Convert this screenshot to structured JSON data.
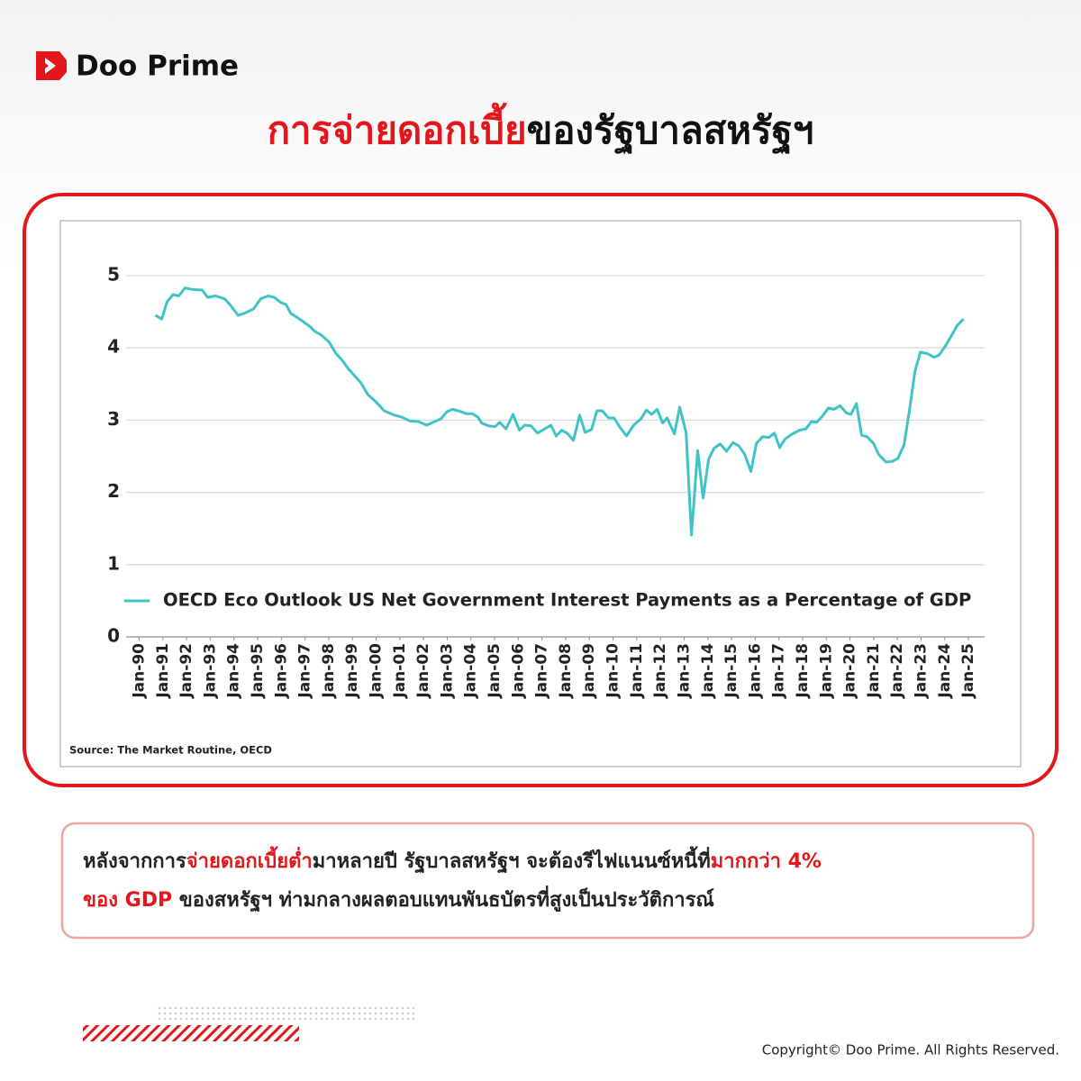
{
  "header": {
    "logo": "Doo Prime",
    "title": [
      {
        "text": "การจ่ายดอกเบี้ย",
        "color": "#e3161b"
      },
      {
        "text": "ของรัฐบาลสหรัฐฯ",
        "color": "#111111"
      }
    ]
  },
  "chart_data": {
    "type": "line",
    "series": [
      {
        "name": "OECD Eco Outlook US Net Government Interest Payments as a Percentage of GDP",
        "color": "#3fc3c7",
        "x": [
          1990.68,
          1990.95,
          1991.18,
          1991.44,
          1991.67,
          1991.94,
          1992.21,
          1992.66,
          1992.89,
          1993.23,
          1993.61,
          1993.88,
          1994.18,
          1994.45,
          1994.83,
          1995.13,
          1995.44,
          1995.7,
          1995.97,
          1996.2,
          1996.39,
          1996.77,
          1997.19,
          1997.41,
          1997.68,
          1998.02,
          1998.29,
          1998.56,
          1998.86,
          1999.13,
          1999.35,
          1999.66,
          2000.0,
          2000.34,
          2000.76,
          2001.1,
          2001.41,
          2001.79,
          2002.13,
          2002.47,
          2002.74,
          2003.0,
          2003.23,
          2003.57,
          2003.8,
          2004.07,
          2004.3,
          2004.45,
          2004.75,
          2005.02,
          2005.21,
          2005.48,
          2005.78,
          2006.05,
          2006.27,
          2006.54,
          2006.81,
          2007.07,
          2007.38,
          2007.6,
          2007.83,
          2008.06,
          2008.33,
          2008.59,
          2008.82,
          2009.09,
          2009.32,
          2009.54,
          2009.81,
          2010.04,
          2010.27,
          2010.57,
          2010.87,
          2011.18,
          2011.41,
          2011.63,
          2011.86,
          2012.09,
          2012.28,
          2012.59,
          2012.81,
          2013.08,
          2013.31,
          2013.57,
          2013.8,
          2014.03,
          2014.26,
          2014.52,
          2014.79,
          2015.06,
          2015.32,
          2015.55,
          2015.82,
          2016.05,
          2016.31,
          2016.58,
          2016.81,
          2017.03,
          2017.26,
          2017.57,
          2017.87,
          2018.14,
          2018.37,
          2018.59,
          2018.82,
          2019.09,
          2019.32,
          2019.58,
          2019.85,
          2020.04,
          2020.27,
          2020.49,
          2020.72,
          2020.99,
          2021.22,
          2021.52,
          2021.79,
          2022.02,
          2022.28,
          2022.51,
          2022.74,
          2022.97,
          2023.27,
          2023.54,
          2023.76,
          2024.03,
          2024.3,
          2024.52,
          2024.79
        ],
        "values": [
          4.45,
          4.4,
          4.64,
          4.74,
          4.72,
          4.83,
          4.81,
          4.8,
          4.7,
          4.72,
          4.68,
          4.58,
          4.45,
          4.48,
          4.54,
          4.68,
          4.72,
          4.7,
          4.63,
          4.6,
          4.48,
          4.4,
          4.3,
          4.23,
          4.18,
          4.08,
          3.93,
          3.83,
          3.7,
          3.6,
          3.52,
          3.35,
          3.25,
          3.13,
          3.07,
          3.04,
          2.99,
          2.98,
          2.93,
          2.98,
          3.02,
          3.12,
          3.15,
          3.12,
          3.09,
          3.09,
          3.04,
          2.96,
          2.92,
          2.91,
          2.97,
          2.88,
          3.08,
          2.86,
          2.93,
          2.92,
          2.82,
          2.87,
          2.93,
          2.78,
          2.86,
          2.82,
          2.72,
          3.07,
          2.83,
          2.87,
          3.13,
          3.13,
          3.03,
          3.03,
          2.91,
          2.78,
          2.93,
          3.02,
          3.14,
          3.08,
          3.15,
          2.96,
          3.03,
          2.81,
          3.18,
          2.83,
          1.41,
          2.58,
          1.92,
          2.46,
          2.61,
          2.67,
          2.57,
          2.69,
          2.64,
          2.53,
          2.29,
          2.68,
          2.77,
          2.76,
          2.82,
          2.62,
          2.74,
          2.81,
          2.86,
          2.88,
          2.98,
          2.97,
          3.05,
          3.17,
          3.15,
          3.2,
          3.1,
          3.08,
          3.23,
          2.79,
          2.77,
          2.68,
          2.52,
          2.42,
          2.43,
          2.47,
          2.66,
          3.14,
          3.68,
          3.94,
          3.92,
          3.87,
          3.9,
          4.03,
          4.18,
          4.31,
          4.4
        ]
      }
    ],
    "xlim": [
      1989.45,
      2025.68
    ],
    "ylim": [
      0,
      5
    ],
    "yticks": [
      0,
      1,
      2,
      3,
      4,
      5
    ],
    "xticks": [
      {
        "value": 1990,
        "label": "Jan-90"
      },
      {
        "value": 1991,
        "label": "Jan-91"
      },
      {
        "value": 1992,
        "label": "Jan-92"
      },
      {
        "value": 1993,
        "label": "Jan-93"
      },
      {
        "value": 1994,
        "label": "Jan-94"
      },
      {
        "value": 1995,
        "label": "Jan-95"
      },
      {
        "value": 1996,
        "label": "Jan-96"
      },
      {
        "value": 1997,
        "label": "Jan-97"
      },
      {
        "value": 1998,
        "label": "Jan-98"
      },
      {
        "value": 1999,
        "label": "Jan-99"
      },
      {
        "value": 2000,
        "label": "Jan-00"
      },
      {
        "value": 2001,
        "label": "Jan-01"
      },
      {
        "value": 2002,
        "label": "Jan-02"
      },
      {
        "value": 2003,
        "label": "Jan-03"
      },
      {
        "value": 2004,
        "label": "Jan-04"
      },
      {
        "value": 2005,
        "label": "Jan-05"
      },
      {
        "value": 2006,
        "label": "Jan-06"
      },
      {
        "value": 2007,
        "label": "Jan-07"
      },
      {
        "value": 2008,
        "label": "Jan-08"
      },
      {
        "value": 2009,
        "label": "Jan-09"
      },
      {
        "value": 2010,
        "label": "Jan-10"
      },
      {
        "value": 2011,
        "label": "Jan-11"
      },
      {
        "value": 2012,
        "label": "Jan-12"
      },
      {
        "value": 2013,
        "label": "Jan-13"
      },
      {
        "value": 2014,
        "label": "Jan-14"
      },
      {
        "value": 2015,
        "label": "Jan-15"
      },
      {
        "value": 2016,
        "label": "Jan-16"
      },
      {
        "value": 2017,
        "label": "Jan-17"
      },
      {
        "value": 2018,
        "label": "Jan-18"
      },
      {
        "value": 2019,
        "label": "Jan-19"
      },
      {
        "value": 2020,
        "label": "Jan-20"
      },
      {
        "value": 2021,
        "label": "Jan-21"
      },
      {
        "value": 2022,
        "label": "Jan-22"
      },
      {
        "value": 2023,
        "label": "Jan-23"
      },
      {
        "value": 2024,
        "label": "Jan-24"
      },
      {
        "value": 2025,
        "label": "Jan-25"
      }
    ],
    "grid": true,
    "legend": "lower left",
    "source": "Source: The Market Routine, OECD"
  },
  "caption": {
    "lines": [
      [
        {
          "text": "หลังจากการ",
          "color": "#222222"
        },
        {
          "text": "จ่ายดอกเบี้ยต่ำ",
          "color": "#e3161b"
        },
        {
          "text": "มาหลายปี รัฐบาลสหรัฐฯ จะต้องรีไฟแนนซ์หนี้ที่",
          "color": "#222222"
        },
        {
          "text": "มากกว่า 4%",
          "color": "#e3161b"
        }
      ],
      [
        {
          "text": "ของ GDP",
          "color": "#e3161b"
        },
        {
          "text": " ของสหรัฐฯ ท่ามกลางผลตอบแทนพันธบัตรที่สูงเป็นประวัติการณ์",
          "color": "#222222"
        }
      ]
    ]
  },
  "footer": {
    "copyright": "Copyright© Doo Prime. All Rights Reserved."
  }
}
